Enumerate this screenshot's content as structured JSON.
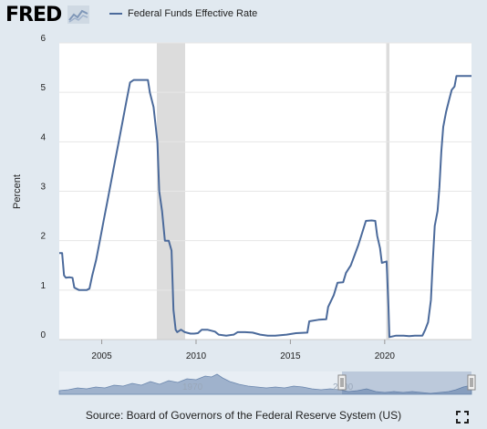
{
  "logo_text": "FRED",
  "legend_color": "#4b6a9b",
  "source_text": "Source: Board of Governors of the Federal Reserve System (US)",
  "navigator": {
    "hint_label_left": "1970",
    "hint_label_right": "2000"
  },
  "icons": {
    "logo": "fred-chart-logo-icon",
    "fullscreen": "fullscreen-icon"
  },
  "chart_data": {
    "type": "line",
    "title": "",
    "xlabel": "",
    "ylabel": "Percent",
    "xlim": [
      2002.75,
      2024.6
    ],
    "ylim": [
      0,
      6
    ],
    "x_ticks": [
      2005,
      2010,
      2015,
      2020
    ],
    "y_ticks": [
      0,
      1,
      2,
      3,
      4,
      5,
      6
    ],
    "grid": true,
    "legend_position": "top-left",
    "recessions": [
      [
        2007.92,
        2009.42
      ],
      [
        2020.08,
        2020.25
      ]
    ],
    "series": [
      {
        "name": "Federal Funds Effective Rate",
        "color": "#4b6a9b",
        "points": [
          [
            2002.75,
            1.75
          ],
          [
            2002.9,
            1.75
          ],
          [
            2003.0,
            1.3
          ],
          [
            2003.1,
            1.25
          ],
          [
            2003.3,
            1.26
          ],
          [
            2003.45,
            1.25
          ],
          [
            2003.55,
            1.05
          ],
          [
            2003.8,
            1.0
          ],
          [
            2004.0,
            1.0
          ],
          [
            2004.2,
            1.0
          ],
          [
            2004.35,
            1.03
          ],
          [
            2004.5,
            1.3
          ],
          [
            2004.7,
            1.6
          ],
          [
            2004.9,
            2.0
          ],
          [
            2005.1,
            2.4
          ],
          [
            2005.3,
            2.8
          ],
          [
            2005.5,
            3.2
          ],
          [
            2005.7,
            3.6
          ],
          [
            2005.9,
            4.0
          ],
          [
            2006.1,
            4.4
          ],
          [
            2006.3,
            4.8
          ],
          [
            2006.5,
            5.2
          ],
          [
            2006.7,
            5.25
          ],
          [
            2007.0,
            5.25
          ],
          [
            2007.3,
            5.25
          ],
          [
            2007.45,
            5.25
          ],
          [
            2007.55,
            5.0
          ],
          [
            2007.75,
            4.7
          ],
          [
            2007.95,
            4.0
          ],
          [
            2008.05,
            3.0
          ],
          [
            2008.2,
            2.6
          ],
          [
            2008.35,
            2.0
          ],
          [
            2008.55,
            2.0
          ],
          [
            2008.7,
            1.8
          ],
          [
            2008.8,
            0.6
          ],
          [
            2008.92,
            0.2
          ],
          [
            2009.0,
            0.15
          ],
          [
            2009.2,
            0.2
          ],
          [
            2009.4,
            0.15
          ],
          [
            2009.7,
            0.12
          ],
          [
            2009.9,
            0.12
          ],
          [
            2010.1,
            0.13
          ],
          [
            2010.3,
            0.2
          ],
          [
            2010.6,
            0.2
          ],
          [
            2011.0,
            0.16
          ],
          [
            2011.2,
            0.1
          ],
          [
            2011.6,
            0.08
          ],
          [
            2012.0,
            0.1
          ],
          [
            2012.2,
            0.15
          ],
          [
            2012.6,
            0.15
          ],
          [
            2013.0,
            0.14
          ],
          [
            2013.4,
            0.1
          ],
          [
            2013.8,
            0.08
          ],
          [
            2014.2,
            0.08
          ],
          [
            2014.8,
            0.1
          ],
          [
            2015.3,
            0.13
          ],
          [
            2015.9,
            0.14
          ],
          [
            2016.0,
            0.37
          ],
          [
            2016.5,
            0.4
          ],
          [
            2016.9,
            0.41
          ],
          [
            2017.0,
            0.66
          ],
          [
            2017.3,
            0.9
          ],
          [
            2017.5,
            1.15
          ],
          [
            2017.8,
            1.16
          ],
          [
            2017.95,
            1.35
          ],
          [
            2018.2,
            1.5
          ],
          [
            2018.4,
            1.7
          ],
          [
            2018.6,
            1.91
          ],
          [
            2018.8,
            2.15
          ],
          [
            2019.0,
            2.4
          ],
          [
            2019.3,
            2.41
          ],
          [
            2019.5,
            2.4
          ],
          [
            2019.6,
            2.1
          ],
          [
            2019.75,
            1.85
          ],
          [
            2019.85,
            1.55
          ],
          [
            2020.1,
            1.58
          ],
          [
            2020.2,
            0.65
          ],
          [
            2020.25,
            0.05
          ],
          [
            2020.6,
            0.08
          ],
          [
            2021.0,
            0.08
          ],
          [
            2021.3,
            0.07
          ],
          [
            2021.6,
            0.08
          ],
          [
            2022.0,
            0.08
          ],
          [
            2022.15,
            0.2
          ],
          [
            2022.3,
            0.35
          ],
          [
            2022.45,
            0.8
          ],
          [
            2022.55,
            1.6
          ],
          [
            2022.65,
            2.3
          ],
          [
            2022.8,
            2.6
          ],
          [
            2022.9,
            3.08
          ],
          [
            2023.0,
            3.8
          ],
          [
            2023.1,
            4.3
          ],
          [
            2023.25,
            4.6
          ],
          [
            2023.4,
            4.83
          ],
          [
            2023.55,
            5.05
          ],
          [
            2023.7,
            5.12
          ],
          [
            2023.8,
            5.33
          ],
          [
            2024.2,
            5.33
          ],
          [
            2024.6,
            5.33
          ]
        ]
      }
    ]
  }
}
